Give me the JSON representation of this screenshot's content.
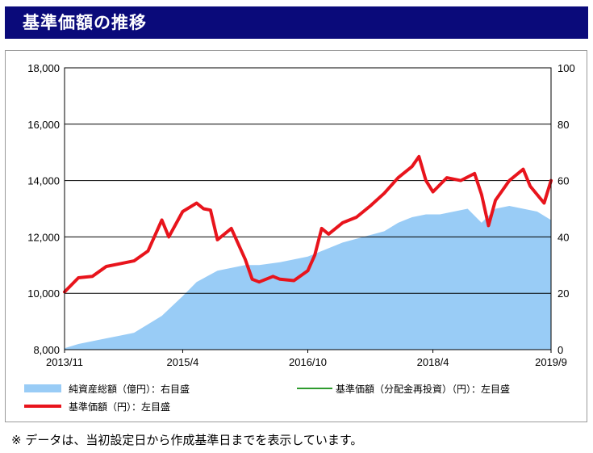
{
  "header": {
    "title": "基準価額の推移"
  },
  "footnote": "※ データは、当初設定日から作成基準日までを表示しています。",
  "colors": {
    "header_bg": "#0a0a7a",
    "nav_line": "#e8141c",
    "reinvest_line": "#2e9b2e",
    "assets_area": "#99ccf6",
    "grid": "#000000"
  },
  "chart_data": {
    "type": "line",
    "x_ticks": [
      "2013/11",
      "2015/4",
      "2016/10",
      "2018/4",
      "2019/9"
    ],
    "y_left": {
      "ticks": [
        "8,000",
        "10,000",
        "12,000",
        "14,000",
        "16,000",
        "18,000"
      ],
      "range": [
        8000,
        18000
      ]
    },
    "y_right": {
      "ticks": [
        "0",
        "20",
        "40",
        "60",
        "80",
        "100"
      ],
      "range": [
        0,
        100
      ]
    },
    "grid": "horizontal",
    "legend_position": "bottom",
    "legend": [
      {
        "label": "純資産総額（億円）：右目盛",
        "type": "area",
        "color": "#99ccf6"
      },
      {
        "label": "基準価額（分配金再投資）（円）：左目盛",
        "type": "line",
        "color": "#2e9b2e"
      },
      {
        "label": "基準価額（円）：左目盛",
        "type": "line",
        "color": "#e8141c"
      }
    ],
    "series": [
      {
        "name": "基準価額（円）：左目盛",
        "axis": "left",
        "x": [
          "2013/11",
          "2014/1",
          "2014/3",
          "2014/5",
          "2014/7",
          "2014/9",
          "2014/11",
          "2015/1",
          "2015/2",
          "2015/4",
          "2015/6",
          "2015/7",
          "2015/8",
          "2015/9",
          "2015/11",
          "2016/1",
          "2016/2",
          "2016/3",
          "2016/5",
          "2016/6",
          "2016/8",
          "2016/10",
          "2016/11",
          "2016/12",
          "2017/1",
          "2017/3",
          "2017/5",
          "2017/7",
          "2017/9",
          "2017/11",
          "2018/1",
          "2018/2",
          "2018/3",
          "2018/4",
          "2018/6",
          "2018/8",
          "2018/10",
          "2018/11",
          "2018/12",
          "2019/1",
          "2019/3",
          "2019/5",
          "2019/6",
          "2019/8",
          "2019/9"
        ],
        "values": [
          10050,
          10550,
          10600,
          10950,
          11050,
          11150,
          11500,
          12600,
          12000,
          12900,
          13200,
          13000,
          12950,
          11900,
          12300,
          11200,
          10500,
          10400,
          10600,
          10500,
          10450,
          10800,
          11350,
          12300,
          12100,
          12500,
          12700,
          13100,
          13550,
          14100,
          14500,
          14850,
          14000,
          13600,
          14100,
          14000,
          14250,
          13500,
          12400,
          13300,
          14000,
          14400,
          13800,
          13200,
          14000
        ]
      },
      {
        "name": "純資産総額（億円）：右目盛",
        "axis": "right",
        "x": [
          "2013/11",
          "2014/1",
          "2014/3",
          "2014/5",
          "2014/7",
          "2014/9",
          "2014/11",
          "2015/1",
          "2015/4",
          "2015/6",
          "2015/9",
          "2016/1",
          "2016/3",
          "2016/6",
          "2016/8",
          "2016/10",
          "2016/12",
          "2017/3",
          "2017/6",
          "2017/9",
          "2017/11",
          "2018/1",
          "2018/3",
          "2018/5",
          "2018/7",
          "2018/9",
          "2018/11",
          "2019/1",
          "2019/3",
          "2019/5",
          "2019/7",
          "2019/9"
        ],
        "values": [
          0.5,
          2,
          3,
          4,
          5,
          6,
          9,
          12,
          19,
          24,
          28,
          30,
          30,
          31,
          32,
          33,
          35,
          38,
          40,
          42,
          45,
          47,
          48,
          48,
          49,
          50,
          45,
          50,
          51,
          50,
          49,
          46
        ]
      }
    ]
  }
}
